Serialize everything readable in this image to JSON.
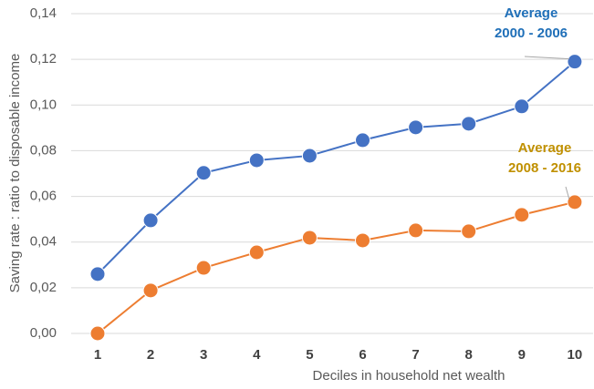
{
  "chart_data": {
    "type": "line",
    "x_label": "Deciles in household net wealth",
    "y_label": "Saving rate : ratio to disposable income",
    "categories": [
      "1",
      "2",
      "3",
      "4",
      "5",
      "6",
      "7",
      "8",
      "9",
      "10"
    ],
    "series": [
      {
        "color": "#4472c4",
        "values": [
          0.026,
          0.0495,
          0.0703,
          0.0758,
          0.0778,
          0.0846,
          0.0902,
          0.0918,
          0.0994,
          0.119
        ]
      },
      {
        "color": "#ed7d31",
        "values": [
          0.0,
          0.0188,
          0.0287,
          0.0355,
          0.0419,
          0.0407,
          0.0451,
          0.0447,
          0.0519,
          0.0575
        ]
      }
    ],
    "annotations": [
      {
        "lines": [
          "Average",
          "2000 - 2006"
        ],
        "color": "#1f6fb8"
      },
      {
        "lines": [
          "Average",
          "2008 - 2016"
        ],
        "color": "#c09000"
      }
    ],
    "ylim": [
      0,
      0.14
    ],
    "yticks": [
      {
        "value": 0,
        "label": "0,00"
      },
      {
        "value": 0.02,
        "label": "0,02"
      },
      {
        "value": 0.04,
        "label": "0,04"
      },
      {
        "value": 0.06,
        "label": "0,06"
      },
      {
        "value": 0.08,
        "label": "0,08"
      },
      {
        "value": 0.1,
        "label": "0,10"
      },
      {
        "value": 0.12,
        "label": "0,12"
      },
      {
        "value": 0.14,
        "label": "0,14"
      }
    ],
    "grid": true
  }
}
